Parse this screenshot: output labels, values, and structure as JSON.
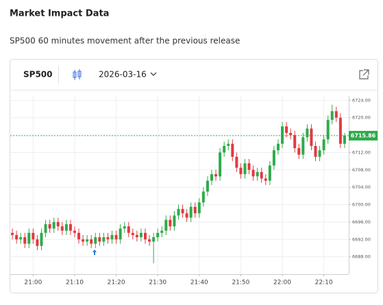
{
  "header": {
    "title": "Market Impact Data",
    "subtitle": "SP500 60 minutes movement after the previous release"
  },
  "widget": {
    "symbol": "SP500",
    "date": "2026-03-16"
  },
  "chart_data": {
    "type": "candlestick",
    "x": [
      "20:55",
      "20:56",
      "20:57",
      "20:58",
      "20:59",
      "21:00",
      "21:01",
      "21:02",
      "21:03",
      "21:04",
      "21:05",
      "21:06",
      "21:07",
      "21:08",
      "21:09",
      "21:10",
      "21:11",
      "21:12",
      "21:13",
      "21:14",
      "21:15",
      "21:16",
      "21:17",
      "21:18",
      "21:19",
      "21:20",
      "21:21",
      "21:22",
      "21:23",
      "21:24",
      "21:25",
      "21:26",
      "21:27",
      "21:28",
      "21:29",
      "21:30",
      "21:31",
      "21:32",
      "21:33",
      "21:34",
      "21:35",
      "21:36",
      "21:37",
      "21:38",
      "21:39",
      "21:40",
      "21:41",
      "21:42",
      "21:43",
      "21:44",
      "21:45",
      "21:46",
      "21:47",
      "21:48",
      "21:49",
      "21:50",
      "21:51",
      "21:52",
      "21:53",
      "21:54",
      "21:55",
      "21:56",
      "21:57",
      "21:58",
      "21:59",
      "22:00",
      "22:01",
      "22:02",
      "22:03",
      "22:04",
      "22:05",
      "22:06",
      "22:07",
      "22:08",
      "22:09",
      "22:10",
      "22:11",
      "22:12",
      "22:13",
      "22:14",
      "22:15"
    ],
    "open": [
      6693.5,
      6693.0,
      6692.0,
      6692.5,
      6691.0,
      6693.5,
      6692.0,
      6690.5,
      6693.5,
      6695.5,
      6694.5,
      6696.0,
      6695.0,
      6694.0,
      6695.5,
      6694.0,
      6693.5,
      6692.0,
      6691.5,
      6692.0,
      6691.0,
      6692.5,
      6691.5,
      6692.5,
      6692.0,
      6693.0,
      6692.0,
      6694.5,
      6695.0,
      6693.5,
      6693.0,
      6692.5,
      6693.5,
      6692.0,
      6691.5,
      6692.5,
      6693.5,
      6694.0,
      6696.5,
      6695.0,
      6697.5,
      6699.0,
      6698.0,
      6697.0,
      6699.5,
      6698.0,
      6700.5,
      6703.0,
      6705.5,
      6707.0,
      6706.5,
      6712.0,
      6713.5,
      6714.0,
      6711.0,
      6708.5,
      6707.0,
      6709.5,
      6708.0,
      6706.5,
      6707.5,
      6706.0,
      6705.5,
      6709.0,
      6712.5,
      6714.0,
      6718.0,
      6716.5,
      6716.0,
      6713.0,
      6711.5,
      6715.5,
      6717.5,
      6713.5,
      6711.0,
      6712.5,
      6715.0,
      6719.5,
      6721.5,
      6720.0,
      6714.0
    ],
    "high": [
      6694.5,
      6694.0,
      6693.5,
      6693.5,
      6694.5,
      6694.5,
      6693.0,
      6694.5,
      6696.5,
      6696.5,
      6697.0,
      6697.0,
      6696.0,
      6696.5,
      6696.5,
      6695.0,
      6694.5,
      6693.0,
      6693.0,
      6693.0,
      6693.5,
      6693.5,
      6693.5,
      6693.5,
      6694.0,
      6694.0,
      6695.5,
      6696.0,
      6696.0,
      6694.5,
      6694.0,
      6694.5,
      6694.5,
      6693.0,
      6693.5,
      6694.5,
      6695.0,
      6697.5,
      6697.5,
      6698.5,
      6700.0,
      6700.0,
      6699.0,
      6700.5,
      6700.5,
      6701.5,
      6704.0,
      6706.5,
      6708.0,
      6708.0,
      6713.0,
      6714.5,
      6715.0,
      6715.0,
      6712.0,
      6709.5,
      6710.5,
      6710.5,
      6709.0,
      6708.5,
      6708.5,
      6707.0,
      6710.0,
      6713.5,
      6715.0,
      6719.0,
      6719.0,
      6717.5,
      6717.0,
      6714.0,
      6716.5,
      6718.5,
      6718.5,
      6714.5,
      6713.5,
      6716.0,
      6720.5,
      6723.0,
      6722.5,
      6721.0,
      6716.5
    ],
    "low": [
      6692.0,
      6691.0,
      6691.0,
      6690.0,
      6690.0,
      6691.0,
      6689.5,
      6689.5,
      6692.5,
      6693.5,
      6693.5,
      6694.0,
      6693.0,
      6693.0,
      6693.0,
      6692.5,
      6691.0,
      6690.5,
      6690.5,
      6690.0,
      6690.0,
      6690.5,
      6690.5,
      6691.0,
      6691.0,
      6691.0,
      6691.0,
      6693.5,
      6692.5,
      6692.0,
      6691.5,
      6691.5,
      6691.0,
      6690.5,
      6686.5,
      6691.5,
      6692.5,
      6693.0,
      6694.0,
      6694.0,
      6696.5,
      6697.0,
      6696.0,
      6696.0,
      6697.0,
      6697.0,
      6699.5,
      6702.0,
      6704.5,
      6705.5,
      6705.5,
      6711.0,
      6712.5,
      6710.0,
      6707.5,
      6706.0,
      6706.0,
      6707.0,
      6705.5,
      6705.5,
      6705.0,
      6704.5,
      6704.5,
      6708.0,
      6711.5,
      6713.0,
      6715.5,
      6715.0,
      6712.0,
      6710.5,
      6710.5,
      6714.5,
      6712.5,
      6710.0,
      6710.0,
      6711.5,
      6714.0,
      6718.5,
      6719.0,
      6713.0,
      6713.0
    ],
    "close": [
      6693.0,
      6692.0,
      6692.5,
      6691.0,
      6693.5,
      6692.0,
      6690.5,
      6693.5,
      6695.5,
      6694.5,
      6696.0,
      6695.0,
      6694.0,
      6695.5,
      6694.0,
      6693.5,
      6692.0,
      6691.5,
      6692.0,
      6691.0,
      6692.5,
      6691.5,
      6692.5,
      6692.0,
      6693.0,
      6692.0,
      6694.5,
      6695.0,
      6693.5,
      6693.0,
      6692.5,
      6693.5,
      6692.0,
      6691.5,
      6692.5,
      6693.5,
      6694.0,
      6696.5,
      6695.0,
      6697.5,
      6699.0,
      6698.0,
      6697.0,
      6699.5,
      6698.0,
      6700.5,
      6703.0,
      6705.5,
      6707.0,
      6706.5,
      6712.0,
      6713.5,
      6714.0,
      6711.0,
      6708.5,
      6707.0,
      6709.5,
      6708.0,
      6706.5,
      6707.5,
      6706.0,
      6705.5,
      6709.0,
      6712.5,
      6714.0,
      6718.0,
      6716.5,
      6716.0,
      6713.0,
      6711.5,
      6715.5,
      6717.5,
      6713.5,
      6711.0,
      6712.5,
      6715.0,
      6719.5,
      6721.5,
      6720.0,
      6714.0,
      6715.86
    ],
    "up_color": "#2eab4a",
    "down_color": "#e2393f",
    "current_price": 6715.86,
    "current_color": "#2eab4a",
    "xlim": [
      "20:54",
      "22:16"
    ],
    "xticks": [
      "21:00",
      "21:10",
      "21:20",
      "21:30",
      "21:40",
      "21:50",
      "22:00",
      "22:10"
    ],
    "ylim": [
      6684,
      6725
    ],
    "yticks": [
      {
        "value": 6688,
        "label": "6688.00"
      },
      {
        "value": 6692,
        "label": "6692.00"
      },
      {
        "value": 6696,
        "label": "6696.00"
      },
      {
        "value": 6700,
        "label": "6700.00"
      },
      {
        "value": 6704,
        "label": "6704.00"
      },
      {
        "value": 6708,
        "label": "6708.00"
      },
      {
        "value": 6712,
        "label": "6712.00"
      },
      {
        "value": 6716,
        "label": "6716.00"
      },
      {
        "value": 6720,
        "label": "6720.00"
      },
      {
        "value": 6724,
        "label": "6724.00"
      }
    ],
    "grid": true
  }
}
